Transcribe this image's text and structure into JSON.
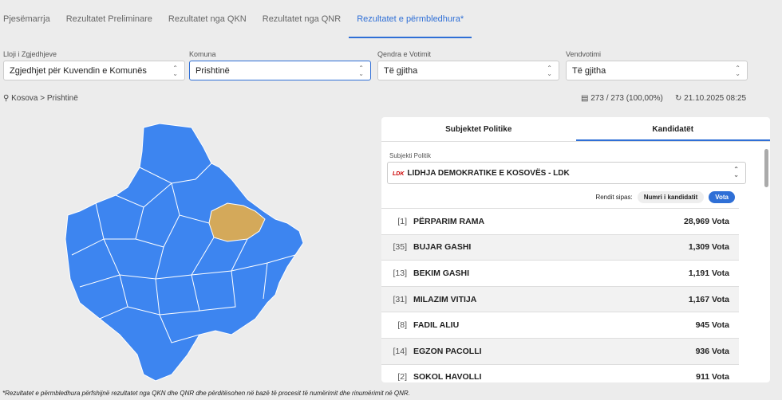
{
  "tabs": [
    "Pjesëmarrja",
    "Rezultatet Preliminare",
    "Rezultatet nga QKN",
    "Rezultatet nga QNR",
    "Rezultatet e përmbledhura*"
  ],
  "filters": [
    {
      "label": "Lloji i Zgjedhjeve",
      "value": "Zgjedhjet për Kuvendin e Komunës"
    },
    {
      "label": "Komuna",
      "value": "Prishtinë"
    },
    {
      "label": "Qendra e Votimit",
      "value": "Të gjitha"
    },
    {
      "label": "Vendvotimi",
      "value": "Të gjitha"
    }
  ],
  "breadcrumb": "Kosova > Prishtinë",
  "stations": "273 / 273 (100,00%)",
  "updated": "21.10.2025 08:25",
  "panel_tabs": [
    "Subjektet Politike",
    "Kandidatët"
  ],
  "party_label": "Subjekti Politik",
  "party_logo": "LDK",
  "party": "LIDHJA DEMOKRATIKE E KOSOVËS - LDK",
  "sort_label": "Rendit sipas:",
  "sort_options": [
    "Numri i kandidatit",
    "Vota"
  ],
  "candidates": [
    {
      "number": "[1]",
      "name": "PËRPARIM RAMA",
      "votes": "28,969 Vota"
    },
    {
      "number": "[35]",
      "name": "BUJAR GASHI",
      "votes": "1,309 Vota"
    },
    {
      "number": "[13]",
      "name": "BEKIM GASHI",
      "votes": "1,191 Vota"
    },
    {
      "number": "[31]",
      "name": "MILAZIM VITIJA",
      "votes": "1,167 Vota"
    },
    {
      "number": "[8]",
      "name": "FADIL ALIU",
      "votes": "945 Vota"
    },
    {
      "number": "[14]",
      "name": "EGZON PACOLLI",
      "votes": "936 Vota"
    },
    {
      "number": "[2]",
      "name": "SOKOL HAVOLLI",
      "votes": "911 Vota"
    }
  ],
  "footnote": "*Rezultatet e përmbledhura përfshijnë rezultatet nga QKN dhe QNR dhe përditësohen në bazë të procesit të numërimit dhe rinumërimit në QNR."
}
